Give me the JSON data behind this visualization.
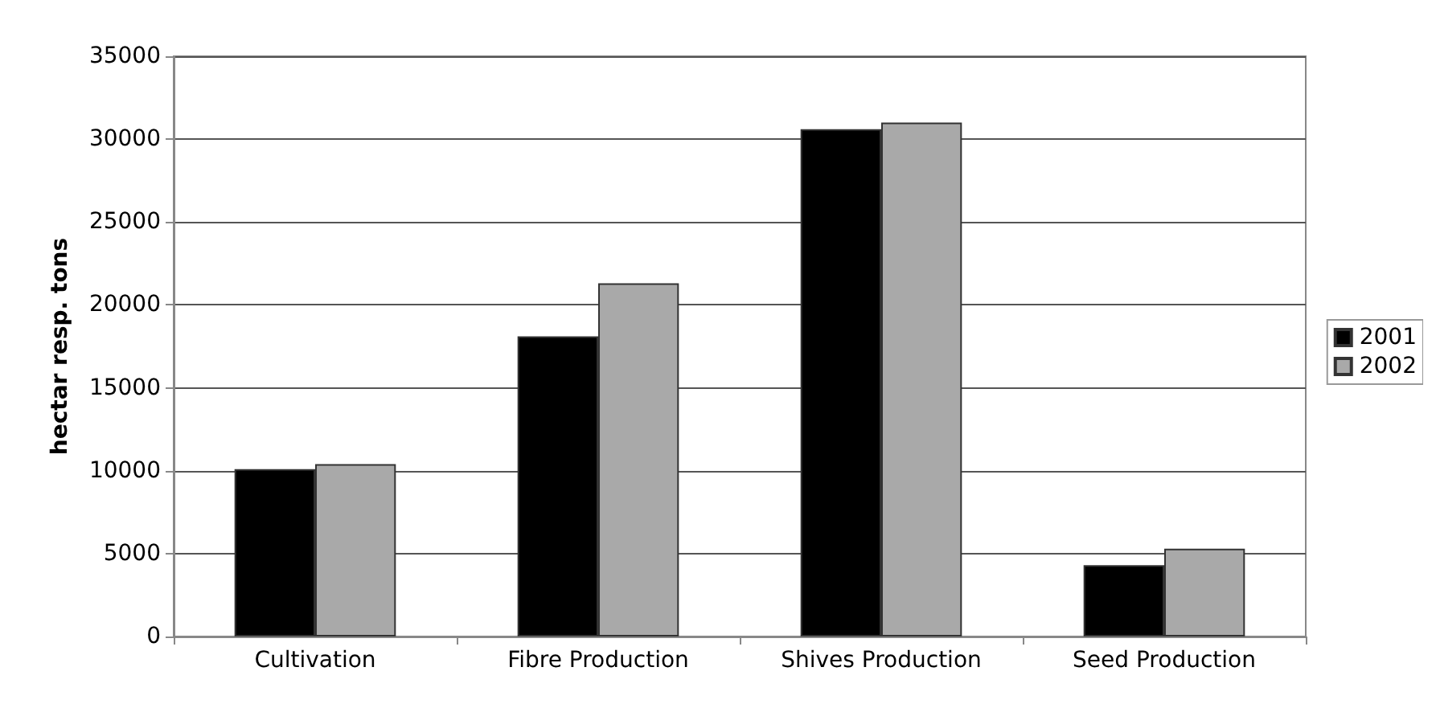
{
  "chart_data": {
    "type": "bar",
    "ylabel": "hectar resp. tons",
    "categories": [
      "Cultivation",
      "Fibre Production",
      "Shives Production",
      "Seed Production"
    ],
    "series": [
      {
        "name": "2001",
        "color": "#000000",
        "values": [
          10100,
          18100,
          30600,
          4300
        ]
      },
      {
        "name": "2002",
        "color": "#a9a9a9",
        "values": [
          10400,
          21300,
          31000,
          5300
        ]
      }
    ],
    "ylim": [
      0,
      35000
    ],
    "yticks": [
      0,
      5000,
      10000,
      15000,
      20000,
      25000,
      30000,
      35000
    ],
    "grid": "y",
    "legend": "right"
  }
}
